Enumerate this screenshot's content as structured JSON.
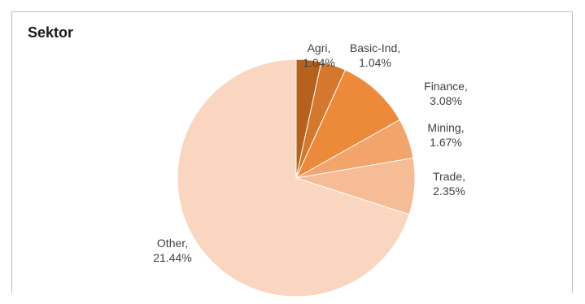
{
  "chart_data": {
    "type": "pie",
    "title": "Sektor",
    "start_angle_deg": 0,
    "direction": "clockwise",
    "slices": [
      {
        "label": "Agri",
        "percent_label": "1.04%",
        "value": 1.04,
        "color": "#b4621e"
      },
      {
        "label": "Basic-Ind",
        "percent_label": "1.04%",
        "value": 1.04,
        "color": "#d3782c"
      },
      {
        "label": "Finance",
        "percent_label": "3.08%",
        "value": 3.08,
        "color": "#ec8a3a"
      },
      {
        "label": "Mining",
        "percent_label": "1.67%",
        "value": 1.67,
        "color": "#f3a46a"
      },
      {
        "label": "Trade",
        "percent_label": "2.35%",
        "value": 2.35,
        "color": "#f6bc95"
      },
      {
        "label": "Other",
        "percent_label": "21.44%",
        "value": 21.44,
        "color": "#fad6c1"
      }
    ]
  }
}
